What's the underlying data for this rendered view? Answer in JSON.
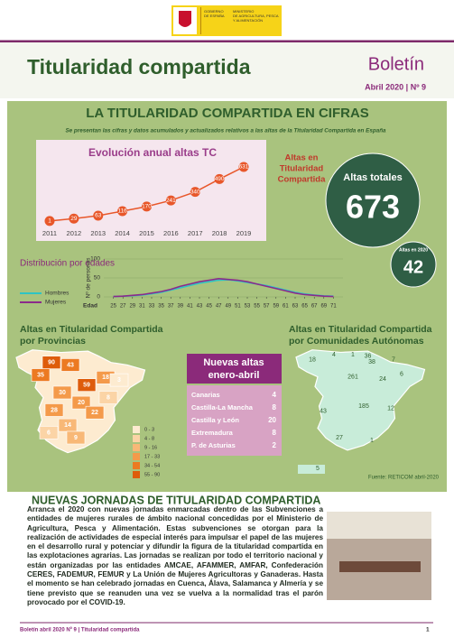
{
  "header": {
    "gov": [
      "GOBIERNO",
      "DE ESPAÑA"
    ],
    "ministry": [
      "MINISTERIO",
      "DE AGRICULTURA, PESCA",
      "Y ALIMENTACIÓN"
    ]
  },
  "masthead": {
    "title": "Titularidad compartida",
    "bulletin": "Boletín",
    "issue": "Abril 2020 | Nº 9"
  },
  "section": {
    "title": "LA TITULARIDAD COMPARTIDA EN CIFRAS",
    "subtitle": "Se presentan las cifras y datos acumulados y actualizados relativos a las altas de la Titularidad Compartida en España"
  },
  "chart_data": [
    {
      "type": "line",
      "title": "Evolución anual altas TC",
      "color": "#e8572a",
      "x": [
        2011,
        2012,
        2013,
        2014,
        2015,
        2016,
        2017,
        2018,
        2019
      ],
      "values": [
        1,
        29,
        63,
        116,
        170,
        241,
        340,
        490,
        631
      ]
    },
    {
      "type": "line",
      "title": "Distribución por edades",
      "y_label": "Nº de personas",
      "x_label": "Edad",
      "grid": true,
      "x": [
        25,
        27,
        29,
        31,
        33,
        35,
        37,
        39,
        41,
        43,
        45,
        47,
        49,
        51,
        53,
        55,
        57,
        59,
        61,
        63,
        65,
        67,
        69,
        71
      ],
      "xlim": [
        23,
        73
      ],
      "xticks": [
        25,
        27,
        29,
        31,
        33,
        35,
        37,
        39,
        41,
        43,
        45,
        47,
        49,
        51,
        53,
        55,
        57,
        59,
        61,
        63,
        65,
        67,
        69,
        71
      ],
      "ylim": [
        0,
        100
      ],
      "yticks": [
        0,
        50,
        100
      ],
      "series": [
        {
          "name": "Hombres",
          "color": "#2ec4c4",
          "values": [
            1,
            2,
            3,
            5,
            8,
            12,
            18,
            24,
            30,
            36,
            40,
            44,
            45,
            42,
            38,
            34,
            30,
            24,
            18,
            12,
            8,
            5,
            3,
            2
          ]
        },
        {
          "name": "Mujeres",
          "color": "#8b2a8b",
          "values": [
            1,
            2,
            4,
            6,
            10,
            14,
            20,
            28,
            34,
            40,
            44,
            48,
            46,
            44,
            40,
            34,
            28,
            22,
            16,
            10,
            6,
            4,
            2,
            1
          ]
        }
      ]
    }
  ],
  "totals": {
    "label": [
      "Altas en",
      "Titularidad",
      "Compartida"
    ],
    "total_label": "Altas totales",
    "total": 673,
    "year_label": "Altas en 2020",
    "year_total": 42
  },
  "provinces_map": {
    "title": [
      "Altas en Titularidad Compartida",
      "por Provincias"
    ],
    "values": [
      90,
      43,
      35,
      59,
      18,
      30,
      20,
      28,
      22,
      14,
      8,
      6,
      9,
      3
    ],
    "legend": [
      "0 - 3",
      "4 - 8",
      "9 - 16",
      "17 - 33",
      "34 - 54",
      "55 - 90"
    ],
    "legend_colors": [
      "#fdebd0",
      "#fbd4a6",
      "#f8b877",
      "#f49a4a",
      "#ec7a22",
      "#de5c0b"
    ]
  },
  "communities_map": {
    "title": [
      "Altas en Titularidad Compartida",
      "por Comunidades Autónomas"
    ],
    "values": [
      18,
      4,
      1,
      36,
      38,
      7,
      261,
      24,
      6,
      185,
      12,
      43,
      27,
      1,
      5
    ]
  },
  "new_altas": {
    "title": [
      "Nuevas altas",
      "enero-abril"
    ],
    "rows": [
      [
        "Canarias",
        4
      ],
      [
        "Castilla-La Mancha",
        8
      ],
      [
        "Castilla y León",
        20
      ],
      [
        "Extremadura",
        8
      ],
      [
        "P. de Asturias",
        2
      ]
    ]
  },
  "source": "Fuente: RETICOM abril-2020",
  "article": {
    "title": "NUEVAS JORNADAS DE TITULARIDAD COMPARTIDA",
    "body": "Arranca el 2020 con nuevas jornadas enmarcadas dentro de las Subvenciones a entidades de mujeres rurales de ámbito nacional concedidas por el Ministerio de Agricultura, Pesca y Alimentación. Estas subvenciones se otorgan para la realización de actividades de especial interés para impulsar el papel de las mujeres en el desarrollo rural y potenciar y difundir la figura de la titularidad compartida en las explotaciones agrarias. Las jornadas se realizan por todo el territorio nacional y están organizadas por las entidades AMCAE, AFAMMER, AMFAR, Confederación CERES, FADEMUR, FEMUR y La Unión de Mujeres Agricultoras y Ganaderas. Hasta el momento se han celebrado jornadas en Cuenca, Álava, Salamanca y Almería y se tiene previsto que se reanuden una vez se vuelva a la normalidad tras el parón provocado por el COVID-19."
  },
  "footer": {
    "text": "Boletín abril 2020 Nº 9 | Titularidad compartida",
    "page": 1
  }
}
